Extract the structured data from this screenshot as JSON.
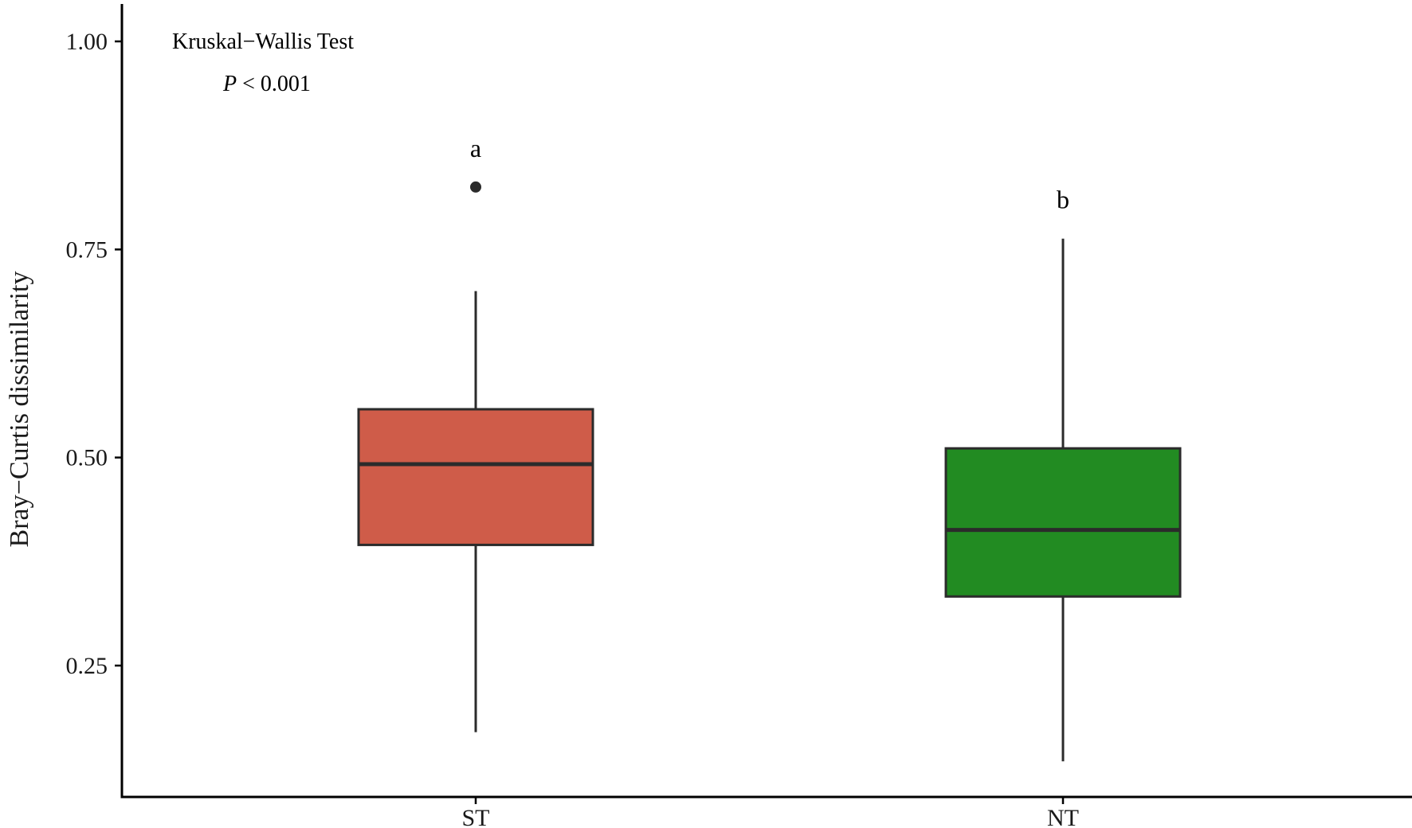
{
  "chart_data": {
    "type": "box",
    "title": "",
    "xlabel": "",
    "ylabel": "Bray−Curtis dissimilarity",
    "ylim": [
      0.1,
      1.04
    ],
    "yticks": [
      0.25,
      0.5,
      0.75,
      1.0
    ],
    "ytick_labels": [
      "0.25",
      "0.50",
      "0.75",
      "1.00"
    ],
    "categories": [
      "ST",
      "NT"
    ],
    "grid": false,
    "legend": "none",
    "boxes": [
      {
        "category": "ST",
        "whisker_low": 0.17,
        "q1": 0.395,
        "median": 0.492,
        "q3": 0.558,
        "whisker_high": 0.7,
        "outliers": [
          0.825
        ],
        "fill": "#CF5C49",
        "letter": "a"
      },
      {
        "category": "NT",
        "whisker_low": 0.135,
        "q1": 0.333,
        "median": 0.413,
        "q3": 0.511,
        "whisker_high": 0.763,
        "outliers": [],
        "fill": "#228B22",
        "letter": "b"
      }
    ],
    "annotations": {
      "test_name": "Kruskal−Wallis Test",
      "p_symbol": "P",
      "p_value": " < 0.001"
    }
  }
}
